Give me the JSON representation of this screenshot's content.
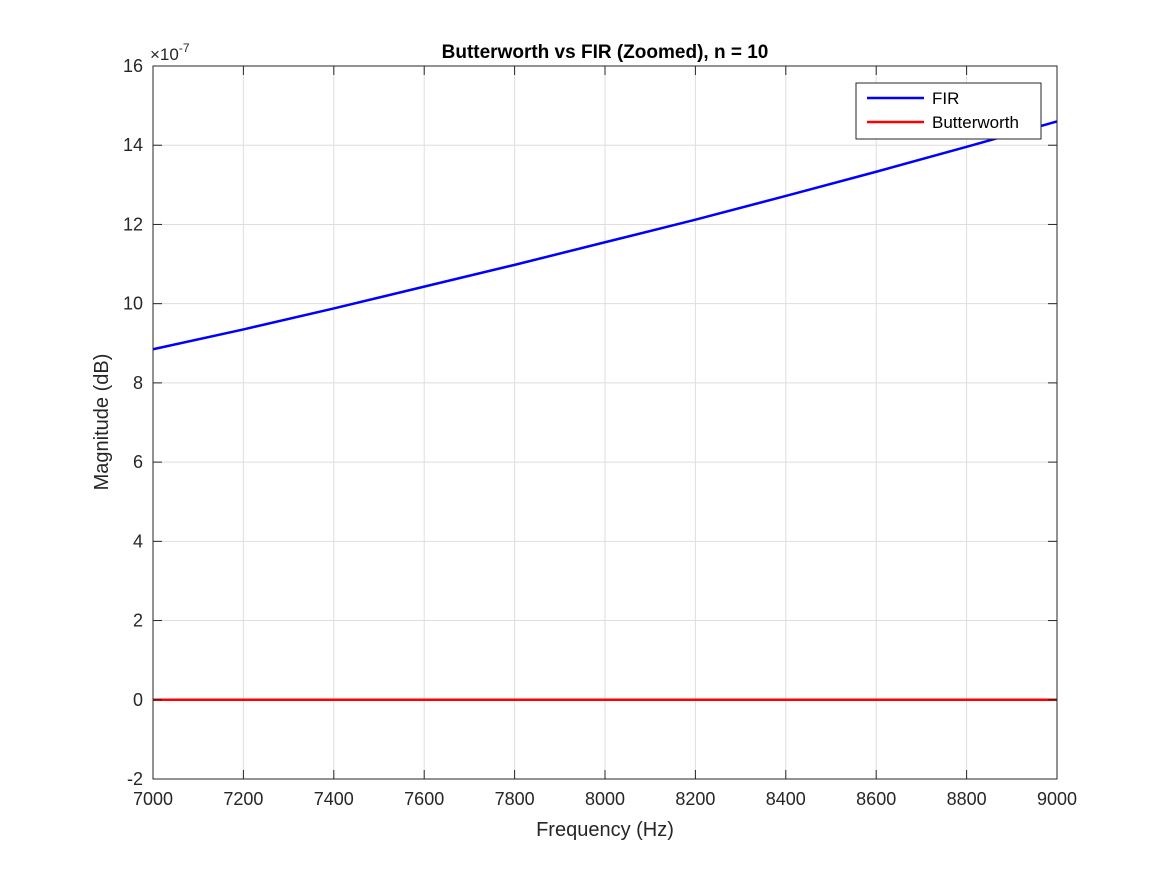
{
  "chart_data": {
    "type": "line",
    "title": "Butterworth vs FIR (Zoomed), n = 10",
    "xlabel": "Frequency (Hz)",
    "ylabel": "Magnitude (dB)",
    "xlim": [
      7000,
      9000
    ],
    "ylim": [
      -2,
      16
    ],
    "y_scale_exponent_label": "×10",
    "y_scale_exponent_power": "-7",
    "xticks": [
      7000,
      7200,
      7400,
      7600,
      7800,
      8000,
      8200,
      8400,
      8600,
      8800,
      9000
    ],
    "xtick_labels": [
      "7000",
      "7200",
      "7400",
      "7600",
      "7800",
      "8000",
      "8200",
      "8400",
      "8600",
      "8800",
      "9000"
    ],
    "yticks": [
      -2,
      0,
      2,
      4,
      6,
      8,
      10,
      12,
      14,
      16
    ],
    "ytick_labels": [
      "-2",
      "0",
      "2",
      "4",
      "6",
      "8",
      "10",
      "12",
      "14",
      "16"
    ],
    "grid": true,
    "legend_position": "top-right",
    "series": [
      {
        "name": "FIR",
        "color": "#0000ff",
        "x": [
          7000,
          7200,
          7400,
          7600,
          7800,
          8000,
          8200,
          8400,
          8600,
          8800,
          9000
        ],
        "y": [
          8.85,
          9.35,
          9.88,
          10.43,
          10.98,
          11.55,
          12.12,
          12.72,
          13.33,
          13.96,
          14.6
        ]
      },
      {
        "name": "Butterworth",
        "color": "#ff0000",
        "x": [
          7000,
          9000
        ],
        "y": [
          0,
          0
        ]
      }
    ]
  }
}
